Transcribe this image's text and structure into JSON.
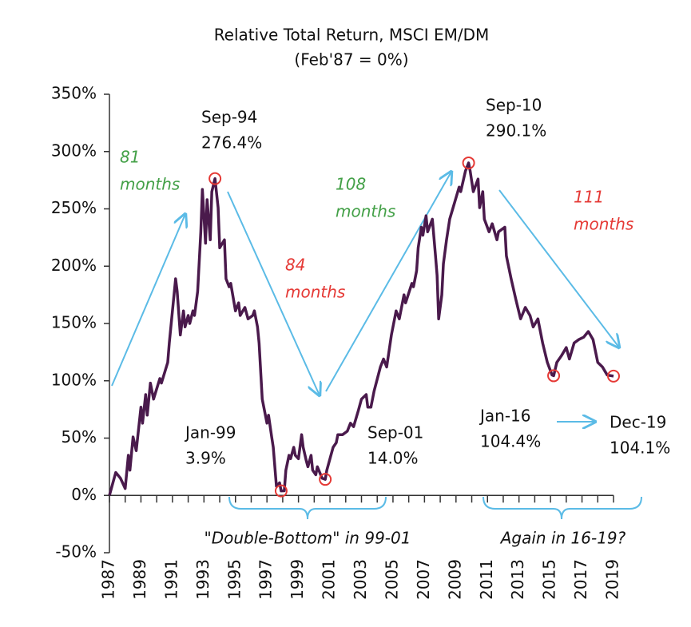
{
  "chart_data": {
    "type": "line",
    "title": "Relative Total Return, MSCI EM/DM",
    "subtitle": "(Feb'87 = 0%)",
    "color": "#4a1a4c",
    "marker_color": "#e53935",
    "x": [
      1987.0,
      1987.4,
      1987.7,
      1988.0,
      1988.2,
      1988.3,
      1988.5,
      1988.7,
      1989.0,
      1989.1,
      1989.3,
      1989.4,
      1989.6,
      1989.8,
      1990.2,
      1990.3,
      1990.7,
      1990.8,
      1991.0,
      1991.2,
      1991.3,
      1991.5,
      1991.7,
      1991.8,
      1992.0,
      1992.1,
      1992.3,
      1992.4,
      1992.6,
      1992.8,
      1992.9,
      1993.1,
      1993.2,
      1993.4,
      1993.5,
      1993.7,
      1993.9,
      1994.0,
      1994.3,
      1994.4,
      1994.6,
      1994.7,
      1995.0,
      1995.2,
      1995.3,
      1995.6,
      1995.8,
      1996.1,
      1996.2,
      1996.4,
      1996.5,
      1996.7,
      1997.0,
      1997.1,
      1997.3,
      1997.4,
      1997.6,
      1997.8,
      1997.9,
      1998.1,
      1998.2,
      1998.4,
      1998.5,
      1998.7,
      1998.8,
      1999.0,
      1999.2,
      1999.3,
      1999.5,
      1999.6,
      1999.8,
      1999.9,
      2000.1,
      2000.2,
      2000.5,
      2000.7,
      2000.8,
      2001.0,
      2001.2,
      2001.4,
      2001.5,
      2001.8,
      2002.1,
      2002.3,
      2002.5,
      2002.8,
      2003.0,
      2003.3,
      2003.4,
      2003.6,
      2003.8,
      2004.2,
      2004.4,
      2004.6,
      2004.9,
      2005.2,
      2005.4,
      2005.7,
      2005.8,
      2006.2,
      2006.3,
      2006.5,
      2006.6,
      2006.8,
      2006.9,
      2007.1,
      2007.2,
      2007.5,
      2007.7,
      2007.8,
      2007.9,
      2008.1,
      2008.2,
      2008.4,
      2008.6,
      2008.9,
      2009.2,
      2009.3,
      2009.6,
      2009.8,
      2009.9,
      2010.1,
      2010.4,
      2010.5,
      2010.7,
      2010.8,
      2011.1,
      2011.3,
      2011.6,
      2011.7,
      2012.1,
      2012.2,
      2012.5,
      2012.8,
      2013.1,
      2013.4,
      2013.7,
      2013.9,
      2014.2,
      2014.5,
      2014.8,
      2015.1,
      2015.2,
      2015.4,
      2015.7,
      2016.0,
      2016.2,
      2016.5,
      2016.8,
      2017.1,
      2017.4,
      2017.7,
      2018.0,
      2018.3,
      2018.6,
      2019.0
    ],
    "values": [
      0,
      20,
      15,
      6,
      35,
      22,
      51,
      39,
      77,
      63,
      88,
      70,
      98,
      84,
      102,
      98,
      116,
      133,
      161,
      189,
      178,
      140,
      161,
      147,
      157,
      150,
      161,
      157,
      178,
      230,
      267,
      220,
      258,
      223,
      265,
      276.4,
      251,
      216,
      223,
      189,
      182,
      185,
      161,
      168,
      157,
      164,
      154,
      157,
      161,
      147,
      133,
      84,
      63,
      70,
      51,
      42,
      8,
      11,
      3.9,
      4,
      22,
      35,
      32,
      42,
      35,
      32,
      53,
      42,
      30,
      25,
      35,
      22,
      18,
      25,
      15,
      14.0,
      22,
      32,
      42,
      46,
      53,
      53,
      56,
      63,
      60,
      74,
      84,
      88,
      77,
      77,
      91,
      112,
      119,
      112,
      140,
      161,
      154,
      175,
      168,
      185,
      182,
      196,
      216,
      234,
      227,
      244,
      230,
      241,
      209,
      192,
      154,
      175,
      202,
      223,
      241,
      255,
      269,
      265,
      283,
      290.1,
      283,
      265,
      276,
      251,
      265,
      241,
      230,
      237,
      223,
      230,
      234,
      209,
      189,
      171,
      154,
      164,
      157,
      147,
      154,
      133,
      116,
      105,
      104.4,
      116,
      122,
      129,
      119,
      133,
      136,
      138,
      143,
      136,
      116,
      112,
      105,
      104.1
    ],
    "xlim": [
      1987,
      2019
    ],
    "xticks": [
      1987,
      1989,
      1991,
      1993,
      1995,
      1997,
      1999,
      2001,
      2003,
      2005,
      2007,
      2009,
      2011,
      2013,
      2015,
      2017,
      2019
    ],
    "xminorticks": [
      1988,
      1990,
      1992,
      1994,
      1996,
      1998,
      2000,
      2002,
      2004,
      2006,
      2008,
      2010,
      2012,
      2014,
      2016,
      2018
    ],
    "ylim": [
      -50,
      350
    ],
    "yticks": [
      {
        "value": -50,
        "label": "-50%"
      },
      {
        "value": 0,
        "label": "0%"
      },
      {
        "value": 50,
        "label": "50%"
      },
      {
        "value": 100,
        "label": "100%"
      },
      {
        "value": 150,
        "label": "150%"
      },
      {
        "value": 200,
        "label": "200%"
      },
      {
        "value": 250,
        "label": "250%"
      },
      {
        "value": 300,
        "label": "300%"
      },
      {
        "value": 350,
        "label": "350%"
      }
    ],
    "annotations": [
      {
        "date": "Sep-94",
        "value_label": "276.4%",
        "x": 1993.7,
        "value": 276.4
      },
      {
        "date": "Jan-99",
        "value_label": "3.9%",
        "x": 1997.9,
        "value": 3.9
      },
      {
        "date": "Sep-01",
        "value_label": "14.0%",
        "x": 2000.7,
        "value": 14.0
      },
      {
        "date": "Sep-10",
        "value_label": "290.1%",
        "x": 2009.8,
        "value": 290.1
      },
      {
        "date": "Jan-16",
        "value_label": "104.4%",
        "x": 2015.2,
        "value": 104.4
      },
      {
        "date": "Dec-19",
        "value_label": "104.1%",
        "x": 2019.0,
        "value": 104.1
      }
    ],
    "arrow_labels": [
      {
        "lines": [
          "81",
          "months"
        ],
        "color": "#43a047"
      },
      {
        "lines": [
          "84",
          "months"
        ],
        "color": "#e53935"
      },
      {
        "lines": [
          "108",
          "months"
        ],
        "color": "#43a047"
      },
      {
        "lines": [
          "111",
          "months"
        ],
        "color": "#e53935"
      }
    ],
    "bracket_labels": [
      "\"Double-Bottom\" in 99-01",
      "Again in 16-19?"
    ]
  }
}
